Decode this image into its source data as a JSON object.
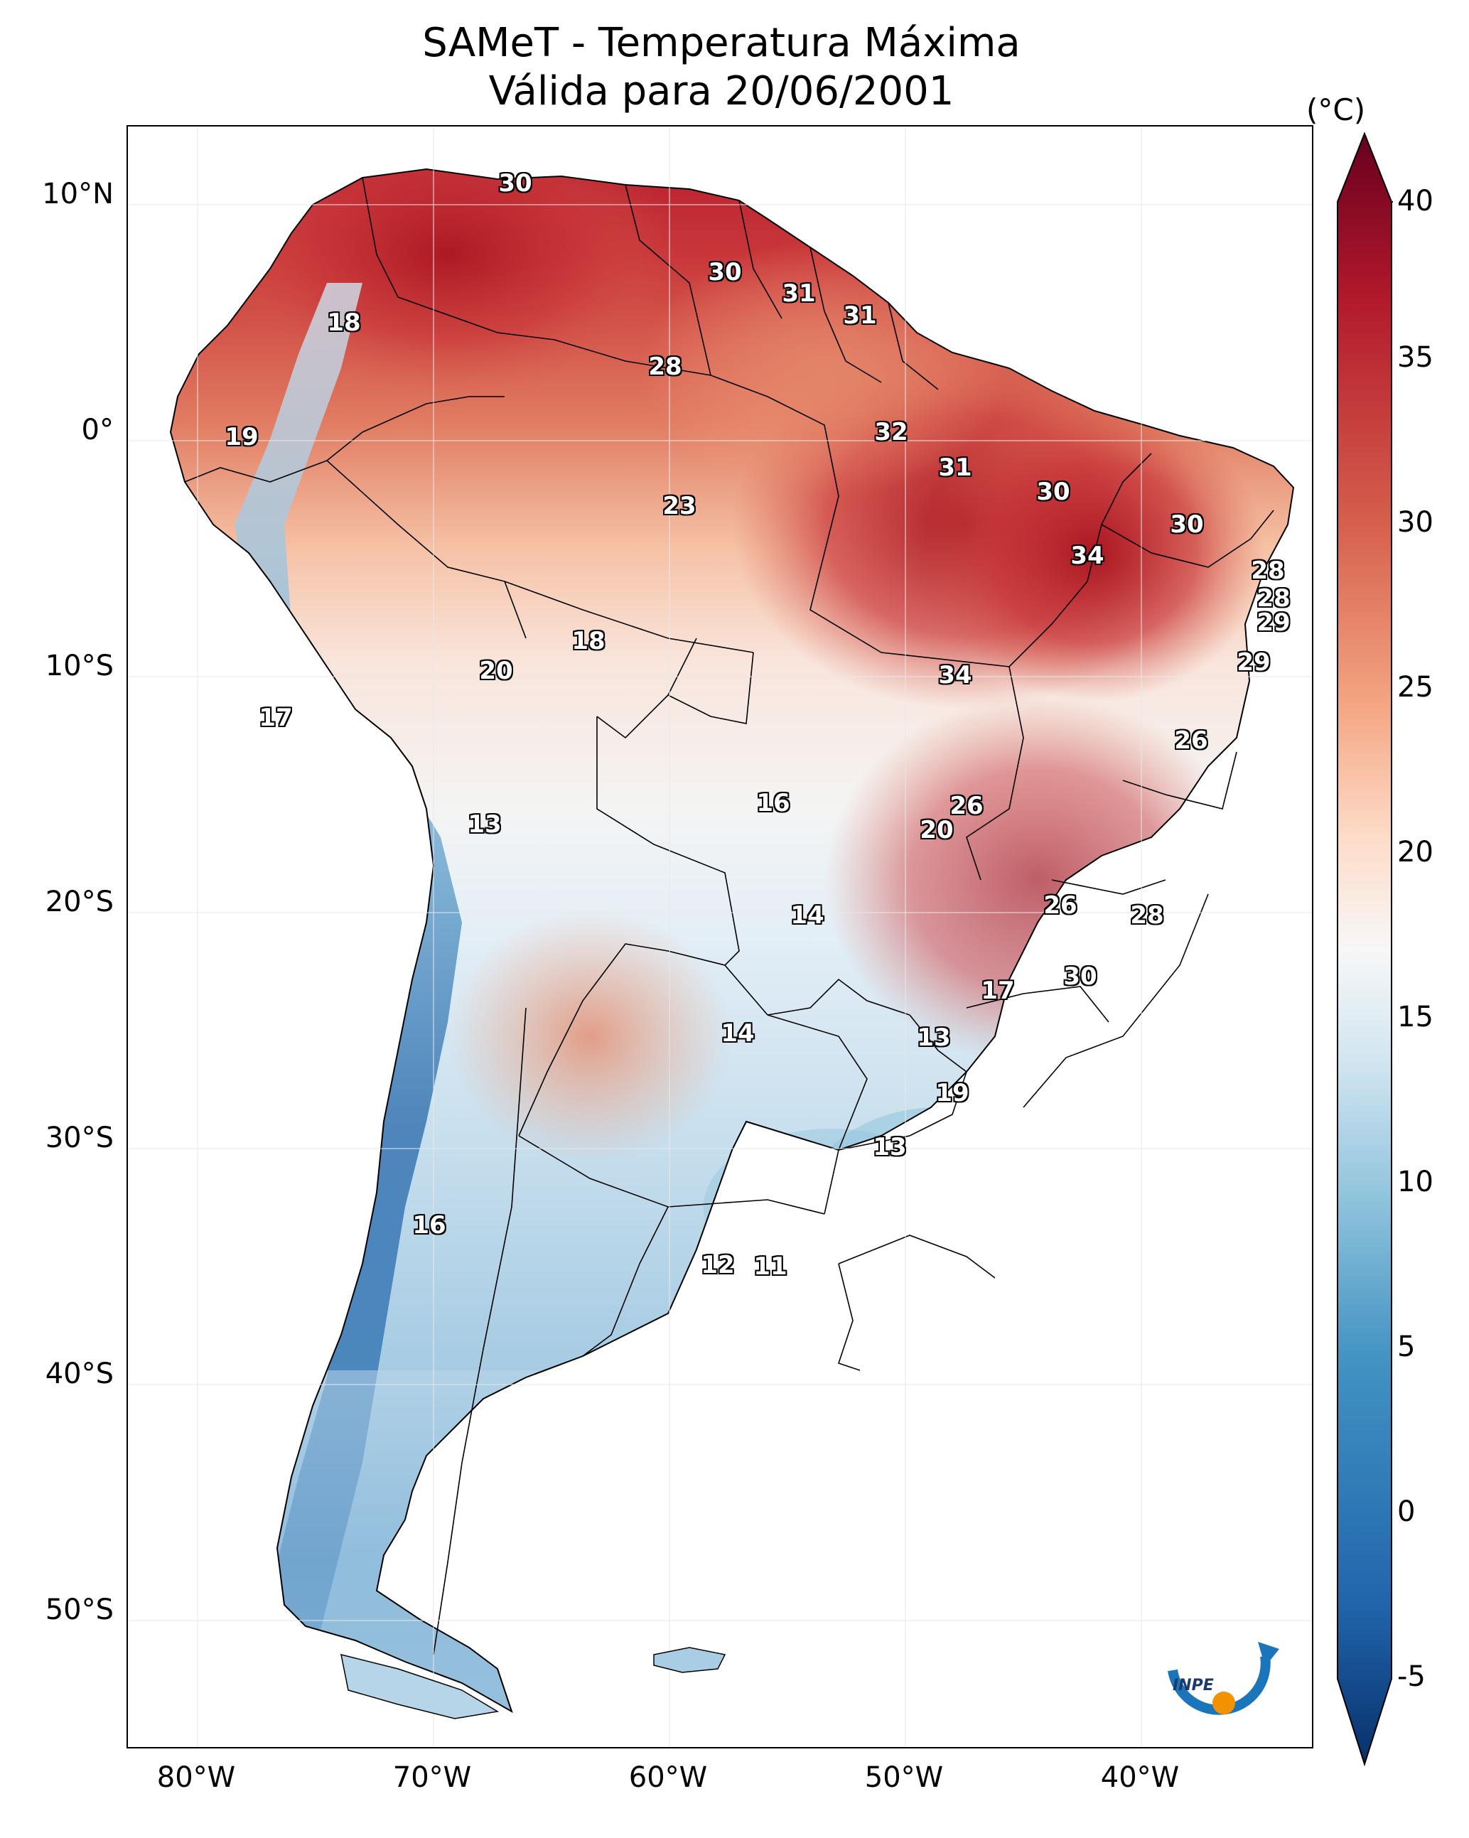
{
  "title": {
    "line1": "SAMeT - Temperatura Máxima",
    "line2": "Válida para 20/06/2001"
  },
  "axes": {
    "lat_ticks": [
      "10°N",
      "0°",
      "10°S",
      "20°S",
      "30°S",
      "40°S",
      "50°S"
    ],
    "lon_ticks": [
      "80°W",
      "70°W",
      "60°W",
      "50°W",
      "40°W"
    ]
  },
  "colorbar": {
    "unit": "(°C)",
    "ticks": [
      "40",
      "35",
      "30",
      "25",
      "20",
      "15",
      "10",
      "5",
      "0",
      "-5"
    ],
    "range": [
      -5,
      40
    ],
    "colors": [
      "#08306b",
      "#2166ac",
      "#4393c3",
      "#92c5de",
      "#d1e5f0",
      "#f7f7f7",
      "#fddbc7",
      "#f4a582",
      "#d6604d",
      "#b2182b",
      "#67001f"
    ]
  },
  "contour_labels": [
    "30",
    "30",
    "31",
    "31",
    "18",
    "28",
    "19",
    "32",
    "31",
    "23",
    "30",
    "30",
    "34",
    "28",
    "28",
    "29",
    "18",
    "20",
    "34",
    "29",
    "17",
    "26",
    "16",
    "26",
    "13",
    "20",
    "14",
    "26",
    "28",
    "17",
    "30",
    "14",
    "13",
    "19",
    "13",
    "16",
    "12",
    "11"
  ],
  "logo": {
    "text": "INPE",
    "accent": "#f39200",
    "blue": "#1a75bb"
  }
}
